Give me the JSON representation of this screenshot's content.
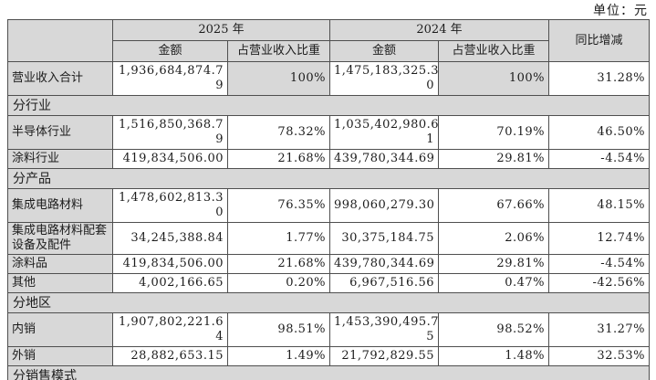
{
  "unit_label": "单位：元",
  "table": {
    "headers": {
      "year_2025": "2025 年",
      "year_2024": "2024 年",
      "amount": "金额",
      "ratio": "占营业收入比重",
      "yoy": "同比增减"
    },
    "rows": [
      {
        "type": "data",
        "label": "营业收入合计",
        "a2025": "1,936,684,874.7\n9",
        "r2025": "100%",
        "a2024": "1,475,183,325.3\n0",
        "r2024": "100%",
        "yoy": "31.28%"
      },
      {
        "type": "section",
        "label": "分行业"
      },
      {
        "type": "data",
        "label": "半导体行业",
        "a2025": "1,516,850,368.7\n9",
        "r2025": "78.32%",
        "a2024": "1,035,402,980.6\n1",
        "r2024": "70.19%",
        "yoy": "46.50%"
      },
      {
        "type": "data",
        "label": "涂料行业",
        "a2025": "419,834,506.00",
        "r2025": "21.68%",
        "a2024": "439,780,344.69",
        "r2024": "29.81%",
        "yoy": "-4.54%"
      },
      {
        "type": "section",
        "label": "分产品"
      },
      {
        "type": "data",
        "label": "集成电路材料",
        "a2025": "1,478,602,813.3\n0",
        "r2025": "76.35%",
        "a2024": "998,060,279.30",
        "r2024": "67.66%",
        "yoy": "48.15%"
      },
      {
        "type": "data",
        "label": "集成电路材料配套设备及配件",
        "a2025": "34,245,388.84",
        "r2025": "1.77%",
        "a2024": "30,375,184.75",
        "r2024": "2.06%",
        "yoy": "12.74%"
      },
      {
        "type": "data",
        "label": "涂料品",
        "a2025": "419,834,506.00",
        "r2025": "21.68%",
        "a2024": "439,780,344.69",
        "r2024": "29.81%",
        "yoy": "-4.54%"
      },
      {
        "type": "data",
        "label": "其他",
        "a2025": "4,002,166.65",
        "r2025": "0.20%",
        "a2024": "6,967,516.56",
        "r2024": "0.47%",
        "yoy": "-42.56%"
      },
      {
        "type": "section",
        "label": "分地区"
      },
      {
        "type": "data",
        "label": "内销",
        "a2025": "1,907,802,221.6\n4",
        "r2025": "98.51%",
        "a2024": "1,453,390,495.7\n5",
        "r2024": "98.52%",
        "yoy": "31.27%"
      },
      {
        "type": "data",
        "label": "外销",
        "a2025": "28,882,653.15",
        "r2025": "1.49%",
        "a2024": "21,792,829.55",
        "r2024": "1.48%",
        "yoy": "32.53%"
      },
      {
        "type": "section",
        "label": "分销售模式"
      }
    ]
  }
}
